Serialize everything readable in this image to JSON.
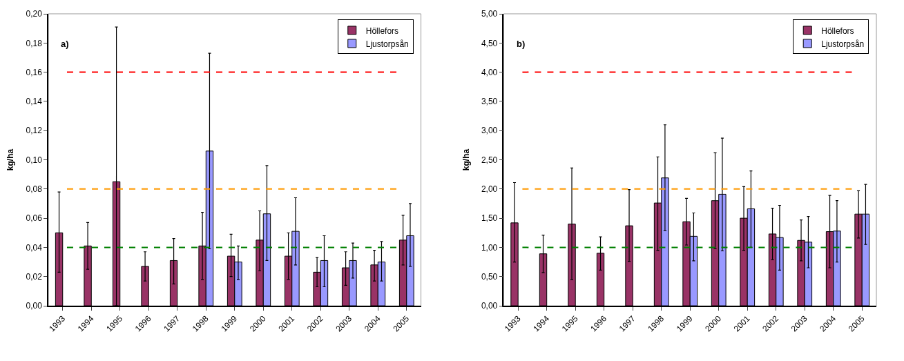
{
  "chart_data": [
    {
      "type": "bar",
      "ylabel": "kg/ha",
      "annotations": [
        "a)"
      ],
      "categories": [
        "1993",
        "1994",
        "1995",
        "1996",
        "1997",
        "1998",
        "1999",
        "2000",
        "2001",
        "2002",
        "2003",
        "2004",
        "2005"
      ],
      "series": [
        {
          "name": "Höllefors",
          "color": "#993366",
          "values": [
            0.05,
            0.041,
            0.085,
            0.027,
            0.031,
            0.041,
            0.034,
            0.045,
            0.034,
            0.023,
            0.026,
            0.028,
            0.045
          ],
          "errors": [
            [
              0.023,
              0.078
            ],
            [
              0.025,
              0.057
            ],
            [
              0,
              0.191
            ],
            [
              0.017,
              0.037
            ],
            [
              0.015,
              0.046
            ],
            [
              0.018,
              0.064
            ],
            [
              0.02,
              0.049
            ],
            [
              0.024,
              0.065
            ],
            [
              0.018,
              0.05
            ],
            [
              0.013,
              0.033
            ],
            [
              0.014,
              0.037
            ],
            [
              0.017,
              0.038
            ],
            [
              0.028,
              0.062
            ]
          ]
        },
        {
          "name": "Ljustorpsån",
          "color": "#9999ff",
          "values": [
            null,
            null,
            null,
            null,
            null,
            0.106,
            0.03,
            0.063,
            0.051,
            0.031,
            0.031,
            0.03,
            0.048
          ],
          "errors": [
            null,
            null,
            null,
            null,
            null,
            [
              0.039,
              0.173
            ],
            [
              0.018,
              0.041
            ],
            [
              0.031,
              0.096
            ],
            [
              0.028,
              0.074
            ],
            [
              0.013,
              0.048
            ],
            [
              0.019,
              0.043
            ],
            [
              0.017,
              0.044
            ],
            [
              0.027,
              0.07
            ]
          ]
        }
      ],
      "ylim": [
        0,
        0.2
      ],
      "yticks": [
        {
          "value": 0,
          "label": "0,00"
        },
        {
          "value": 0.02,
          "label": "0,02"
        },
        {
          "value": 0.04,
          "label": "0,04"
        },
        {
          "value": 0.06,
          "label": "0,06"
        },
        {
          "value": 0.08,
          "label": "0,08"
        },
        {
          "value": 0.1,
          "label": "0,10"
        },
        {
          "value": 0.12,
          "label": "0,12"
        },
        {
          "value": 0.14,
          "label": "0,14"
        },
        {
          "value": 0.16,
          "label": "0,16"
        },
        {
          "value": 0.18,
          "label": "0,18"
        },
        {
          "value": 0.2,
          "label": "0,20"
        }
      ],
      "ref_lines": [
        {
          "axis": "y",
          "value": 0.16,
          "color": "#ff0000",
          "line_style": "dashed"
        },
        {
          "axis": "y",
          "value": 0.08,
          "color": "#ff9900",
          "line_style": "dashed"
        },
        {
          "axis": "y",
          "value": 0.04,
          "color": "#008000",
          "line_style": "dashed"
        }
      ],
      "grid": false,
      "legend": "top right"
    },
    {
      "type": "bar",
      "ylabel": "kg/ha",
      "annotations": [
        "b)"
      ],
      "categories": [
        "1993",
        "1994",
        "1995",
        "1996",
        "1997",
        "1998",
        "1999",
        "2000",
        "2001",
        "2002",
        "2003",
        "2004",
        "2005"
      ],
      "series": [
        {
          "name": "Höllefors",
          "color": "#993366",
          "values": [
            1.42,
            0.89,
            1.4,
            0.9,
            1.37,
            1.76,
            1.44,
            1.8,
            1.5,
            1.23,
            1.12,
            1.27,
            1.57
          ],
          "errors": [
            [
              0.75,
              2.11
            ],
            [
              0.57,
              1.21
            ],
            [
              0.45,
              2.36
            ],
            [
              0.61,
              1.18
            ],
            [
              0.76,
              1.99
            ],
            [
              0.95,
              2.55
            ],
            [
              1.04,
              1.84
            ],
            [
              0.98,
              2.62
            ],
            [
              0.95,
              2.04
            ],
            [
              0.79,
              1.67
            ],
            [
              0.77,
              1.47
            ],
            [
              0.65,
              1.89
            ],
            [
              1.16,
              1.97
            ]
          ]
        },
        {
          "name": "Ljustorpsån",
          "color": "#9999ff",
          "values": [
            null,
            null,
            null,
            null,
            null,
            2.19,
            1.19,
            1.91,
            1.66,
            1.17,
            1.09,
            1.28,
            1.57
          ],
          "errors": [
            null,
            null,
            null,
            null,
            null,
            [
              1.29,
              3.1
            ],
            [
              0.77,
              1.59
            ],
            [
              0.94,
              2.87
            ],
            [
              1.0,
              2.31
            ],
            [
              0.61,
              1.72
            ],
            [
              0.65,
              1.53
            ],
            [
              0.75,
              1.8
            ],
            [
              1.05,
              2.08
            ]
          ]
        }
      ],
      "ylim": [
        0,
        5
      ],
      "yticks": [
        {
          "value": 0,
          "label": "0,00"
        },
        {
          "value": 0.5,
          "label": "0,50"
        },
        {
          "value": 1,
          "label": "1,00"
        },
        {
          "value": 1.5,
          "label": "1,50"
        },
        {
          "value": 2,
          "label": "2,00"
        },
        {
          "value": 2.5,
          "label": "2,50"
        },
        {
          "value": 3,
          "label": "3,00"
        },
        {
          "value": 3.5,
          "label": "3,50"
        },
        {
          "value": 4,
          "label": "4,00"
        },
        {
          "value": 4.5,
          "label": "4,50"
        },
        {
          "value": 5,
          "label": "5,00"
        }
      ],
      "ref_lines": [
        {
          "axis": "y",
          "value": 4,
          "color": "#ff0000",
          "line_style": "dashed"
        },
        {
          "axis": "y",
          "value": 2,
          "color": "#ff9900",
          "line_style": "dashed"
        },
        {
          "axis": "y",
          "value": 1,
          "color": "#008000",
          "line_style": "dashed"
        }
      ],
      "grid": false,
      "legend": "top right"
    }
  ]
}
